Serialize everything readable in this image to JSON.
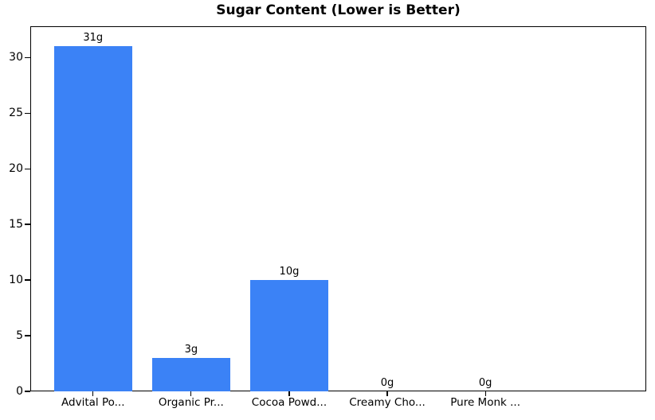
{
  "colors": {
    "bar": "#3b82f6",
    "axis": "#000000",
    "background": "#ffffff",
    "text": "#000000"
  },
  "chart_data": {
    "type": "bar",
    "title": "Sugar Content (Lower is Better)",
    "categories": [
      "Advital Po...",
      "Organic Pr...",
      "Cocoa Powd...",
      "Creamy Cho...",
      "Pure Monk ..."
    ],
    "values": [
      31,
      3,
      10,
      0,
      0
    ],
    "value_labels": [
      "31g",
      "3g",
      "10g",
      "0g",
      "0g"
    ],
    "xlabel": "",
    "ylabel": "",
    "ylim": [
      0,
      32.8
    ],
    "yticks": [
      0,
      5,
      10,
      15,
      20,
      25,
      30
    ],
    "grid": false,
    "legend": false,
    "bar_color": "#3b82f6",
    "bar_width_frac": 0.8,
    "x_margin": 0.64
  }
}
